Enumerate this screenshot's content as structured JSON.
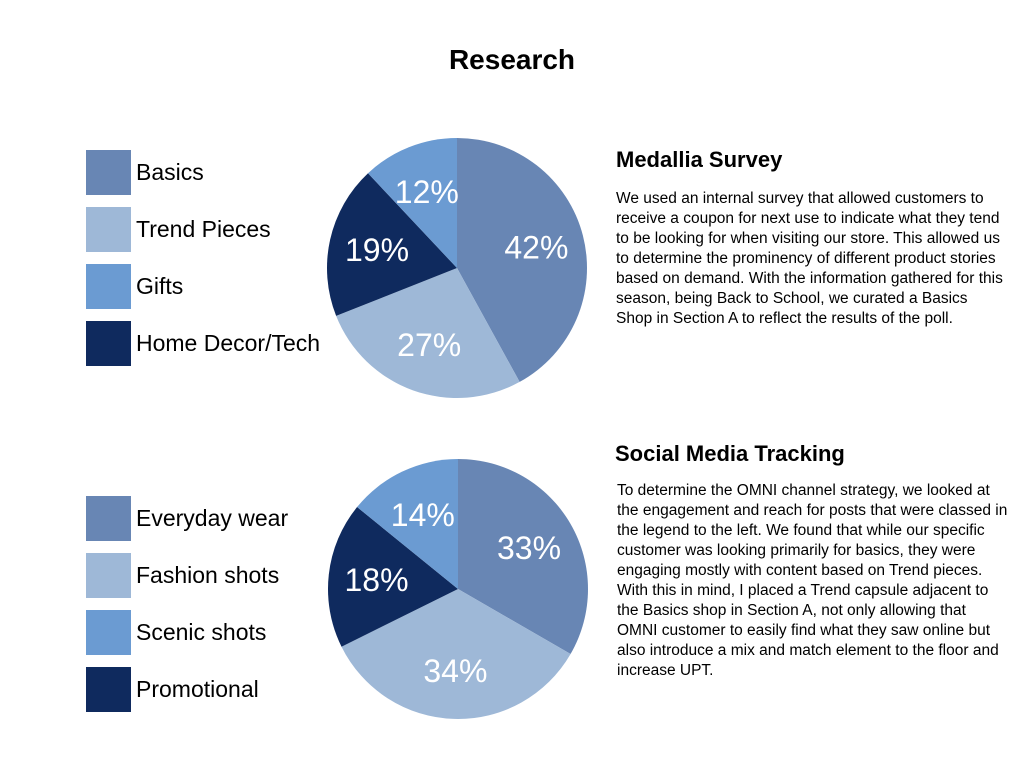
{
  "page": {
    "title": "Research"
  },
  "colors": {
    "slice_1": "#6886B4",
    "slice_2": "#9EB8D7",
    "slice_3": "#6B9BD2",
    "slice_4": "#0F2A5E",
    "label": "#FFFFFF"
  },
  "sections": [
    {
      "heading": "Medallia Survey",
      "body": "We used an internal survey that allowed customers to receive a coupon for next use to indicate what they tend to be looking for when visiting our store. This allowed us to determine the prominency of different product stories based on demand. With the information gathered for this season, being Back to School, we curated a Basics Shop in Section A to reflect the results of the poll."
    },
    {
      "heading": "Social Media Tracking",
      "body": "To determine the OMNI channel strategy, we looked at the engagement and reach for posts that were classed in the legend to the left. We found that while our specific customer was looking primarily for basics, they were engaging mostly with content based on Trend pieces. With this in mind, I placed a Trend capsule adjacent to the Basics shop in Section A, not only allowing that OMNI customer to easily find what they saw online but also introduce a mix and match element to the floor and increase UPT."
    }
  ],
  "chart_data": [
    {
      "type": "pie",
      "title": "",
      "legend_position": "left",
      "categories": [
        "Basics",
        "Trend Pieces",
        "Gifts",
        "Home Decor/Tech"
      ],
      "values": [
        42,
        27,
        12,
        19
      ],
      "labels": [
        "42%",
        "27%",
        "12%",
        "19%"
      ],
      "colors": [
        "#6886B4",
        "#9EB8D7",
        "#6B9BD2",
        "#0F2A5E"
      ],
      "slice_order": [
        0,
        1,
        3,
        2
      ]
    },
    {
      "type": "pie",
      "title": "",
      "legend_position": "left",
      "categories": [
        "Everyday wear",
        "Fashion shots",
        "Scenic shots",
        "Promotional"
      ],
      "values": [
        33,
        34,
        14,
        18
      ],
      "labels": [
        "33%",
        "34%",
        "14%",
        "18%"
      ],
      "colors": [
        "#6886B4",
        "#9EB8D7",
        "#6B9BD2",
        "#0F2A5E"
      ],
      "slice_order": [
        0,
        1,
        3,
        2
      ]
    }
  ]
}
